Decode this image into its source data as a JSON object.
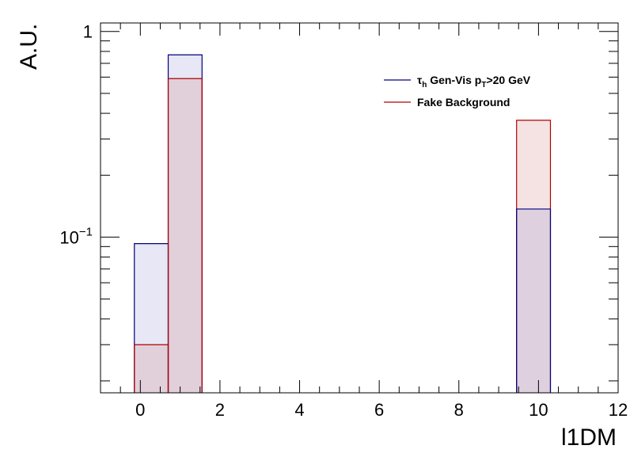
{
  "chart_data": {
    "type": "bar",
    "xlabel": "l1DM",
    "ylabel": "A.U.",
    "xlim": [
      -1,
      12
    ],
    "ylim": [
      0.0175,
      1.1
    ],
    "yscale": "log",
    "x_ticks": [
      "0",
      "2",
      "4",
      "6",
      "8",
      "10",
      "12"
    ],
    "y_ticks": [
      {
        "value": 1,
        "label": "1"
      },
      {
        "value": 0.1,
        "label": "10",
        "exp": "−1"
      }
    ],
    "bin_width": 0.85,
    "bins": [
      -0.15,
      0.7,
      9.45
    ],
    "series": [
      {
        "name": "τ",
        "name_sub": "h",
        "name_rest": " Gen-Vis p",
        "name_sub2": "T",
        "name_end": ">20 GeV",
        "line_color": "#000080",
        "fill_color": "#7878c8",
        "fill_opacity": 0.18,
        "values": [
          0.093,
          0.77,
          0.137
        ]
      },
      {
        "name": "Fake Background",
        "line_color": "#b00000",
        "fill_color": "#c86464",
        "fill_opacity": 0.18,
        "values": [
          0.03,
          0.59,
          0.37
        ]
      }
    ],
    "legend_position": "top-right",
    "grid": false
  }
}
